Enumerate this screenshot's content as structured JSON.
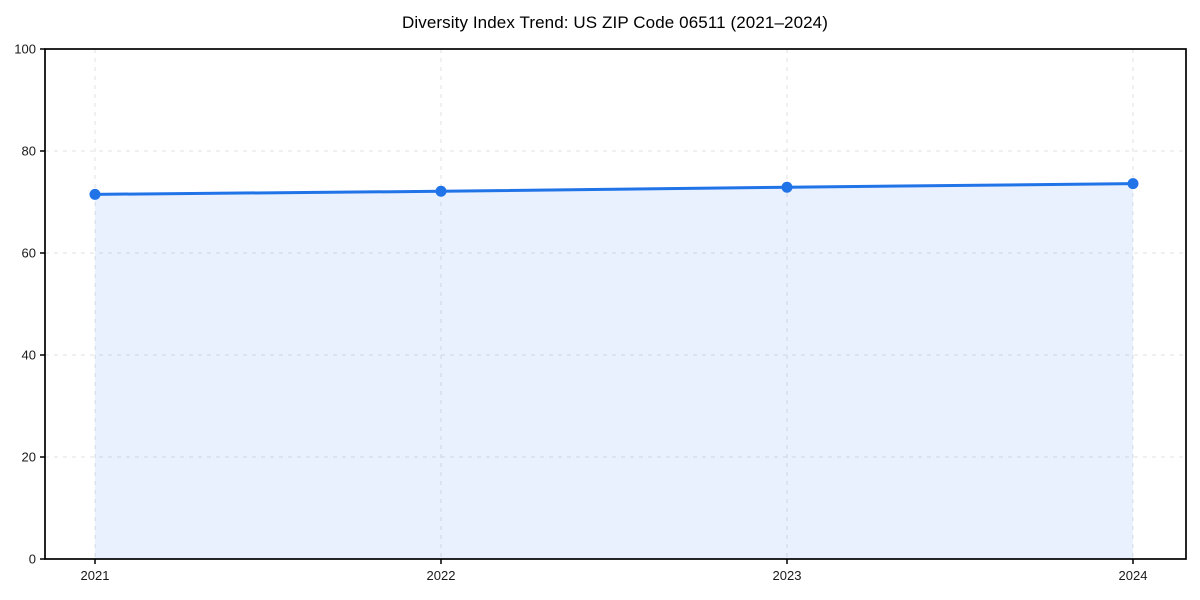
{
  "chart_data": {
    "type": "line",
    "title": "Diversity Index Trend: US ZIP Code 06511 (2021–2024)",
    "x": [
      2021,
      2022,
      2023,
      2024
    ],
    "series": [
      {
        "name": "Diversity Index",
        "values": [
          71.5,
          72.1,
          72.9,
          73.6
        ]
      }
    ],
    "xlabel": "",
    "ylabel": "",
    "ylim": [
      0,
      100
    ],
    "yticks": [
      0,
      20,
      40,
      60,
      80,
      100
    ],
    "xtick_labels": [
      "2021",
      "2022",
      "2023",
      "2024"
    ],
    "grid": true,
    "grid_style": "dashed",
    "legend_position": "none",
    "colors": {
      "line": "#2173e8",
      "marker": "#2173e8",
      "area_fill": "rgba(33,115,232,0.10)",
      "gridline": "#e1e1e1",
      "spine": "#000000",
      "tick_label": "#1a1a1a",
      "title": "#000000"
    }
  }
}
